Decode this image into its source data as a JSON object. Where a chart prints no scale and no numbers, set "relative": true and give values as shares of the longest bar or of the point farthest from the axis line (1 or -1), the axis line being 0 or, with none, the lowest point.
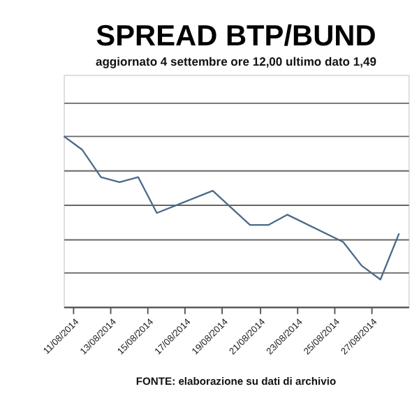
{
  "chart_data": {
    "type": "line",
    "title": "SPREAD BTP/BUND",
    "subtitle": "aggiornato 4 settembre ore 12,00 ultimo dato 1,49",
    "x": [
      "2014-08-10T12:00",
      "2014-08-11T12:00",
      "2014-08-12T12:00",
      "2014-08-13T12:00",
      "2014-08-14T12:00",
      "2014-08-15T12:00",
      "2014-08-18T12:00",
      "2014-08-20T12:00",
      "2014-08-21T12:00",
      "2014-08-22T12:00",
      "2014-08-25T12:00",
      "2014-08-26T12:00",
      "2014-08-27T12:00",
      "2014-08-28T12:00"
    ],
    "series": [
      {
        "color": "#4a6a8a",
        "values": [
          1,
          0.92,
          0.76,
          0.73,
          0.76,
          0.55,
          0.68,
          0.48,
          0.48,
          0.54,
          0.38,
          0.24,
          0.16,
          0.43
        ]
      }
    ],
    "relative": true,
    "xlim": [
      "2014-08-10T12:00",
      "2014-08-29"
    ],
    "xticks": [
      {
        "value": "2014-08-11",
        "label": "11/08/2014"
      },
      {
        "value": "2014-08-13",
        "label": "13/08/2014"
      },
      {
        "value": "2014-08-15",
        "label": "15/08/2014"
      },
      {
        "value": "2014-08-17",
        "label": "17/08/2014"
      },
      {
        "value": "2014-08-19",
        "label": "19/08/2014"
      },
      {
        "value": "2014-08-21",
        "label": "21/08/2014"
      },
      {
        "value": "2014-08-23",
        "label": "23/08/2014"
      },
      {
        "value": "2014-08-25",
        "label": "25/08/2014"
      },
      {
        "value": "2014-08-27",
        "label": "27/08/2014"
      }
    ],
    "grid": "y",
    "legend": false,
    "marker": "none",
    "line_style": "solid",
    "annotations": [
      "FONTE: elaborazione su dati di archivio"
    ]
  }
}
